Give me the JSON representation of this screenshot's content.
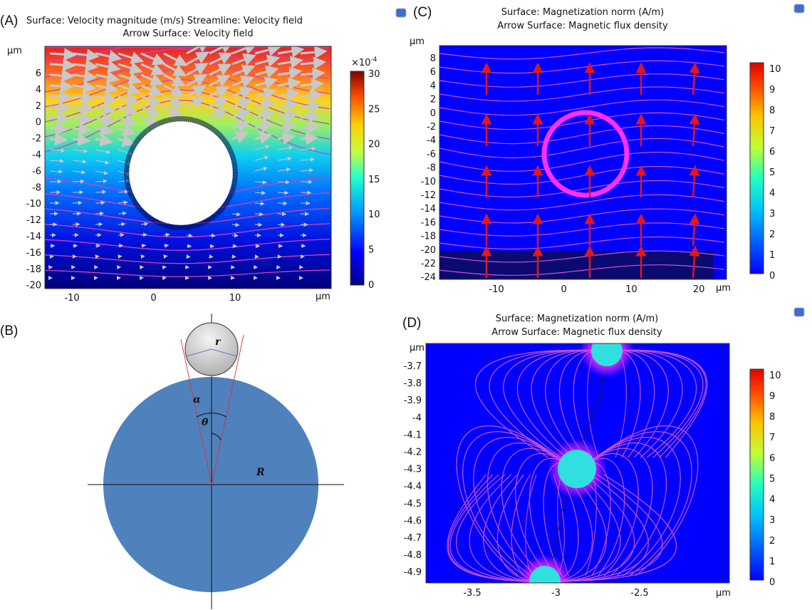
{
  "panel_a": {
    "label": "(A)",
    "title_line1": "Surface: Velocity magnitude (m/s)  Streamline: Velocity field",
    "title_line2": "Arrow Surface: Velocity field",
    "y_unit": "μm",
    "x_unit": "μm",
    "y_ticks": [
      "6",
      "4",
      "2",
      "0",
      "-2",
      "-4",
      "-6",
      "-8",
      "-10",
      "-12",
      "-14",
      "-16",
      "-18",
      "-20"
    ],
    "x_ticks": [
      "-10",
      "0",
      "10"
    ],
    "colorbar_exponent": "×10",
    "colorbar_exponent_power": "-4",
    "colorbar_ticks": [
      "30",
      "25",
      "20",
      "15",
      "10",
      "5",
      "0"
    ]
  },
  "panel_b": {
    "label": "(B)",
    "symbols": {
      "r": "r",
      "alpha": "α",
      "theta": "θ",
      "R": "R"
    }
  },
  "panel_c": {
    "label": "(C)",
    "title_line1": "Surface: Magnetization norm (A/m)",
    "title_line2": "Arrow Surface: Magnetic flux density",
    "y_unit": "μm",
    "x_unit": "μm",
    "y_ticks": [
      "8",
      "6",
      "4",
      "2",
      "0",
      "-2",
      "-4",
      "-6",
      "-8",
      "-10",
      "-12",
      "-14",
      "-16",
      "-18",
      "-20",
      "-22",
      "-24"
    ],
    "x_ticks": [
      "-10",
      "0",
      "10",
      "20"
    ],
    "colorbar_ticks": [
      "10",
      "9",
      "8",
      "7",
      "6",
      "5",
      "4",
      "3",
      "2",
      "1",
      "0"
    ]
  },
  "panel_d": {
    "label": "(D)",
    "title_line1": "Surface: Magnetization norm (A/m)",
    "title_line2": "Arrow Surface: Magnetic flux density",
    "y_unit": "μm",
    "x_unit": "μm",
    "y_ticks": [
      "-3.7",
      "-3.8",
      "-3.9",
      "-4",
      "-4.1",
      "-4.2",
      "-4.3",
      "-4.4",
      "-4.5",
      "-4.6",
      "-4.7",
      "-4.8",
      "-4.9"
    ],
    "x_ticks": [
      "-3.5",
      "-3",
      "-2.5"
    ],
    "colorbar_ticks": [
      "10",
      "9",
      "8",
      "7",
      "6",
      "5",
      "4",
      "3",
      "2",
      "1",
      "0"
    ]
  },
  "colors": {
    "field_blue": "#0000ff",
    "streamline": "#e040e0",
    "arrow_red": "#e01818",
    "sphere_blue": "#4f81bd"
  }
}
